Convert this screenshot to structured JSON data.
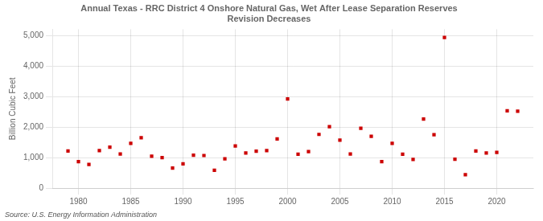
{
  "chart_data": {
    "type": "scatter",
    "title": "Annual Texas - RRC District 4 Onshore Natural Gas, Wet After Lease Separation Reserves\nRevision Decreases",
    "y_label": "Billion Cubic Feet",
    "source": "Source: U.S. Energy Information Administration",
    "x": [
      1979,
      1980,
      1981,
      1982,
      1983,
      1984,
      1985,
      1986,
      1987,
      1988,
      1989,
      1990,
      1991,
      1992,
      1993,
      1994,
      1995,
      1996,
      1997,
      1998,
      1999,
      2000,
      2001,
      2002,
      2003,
      2004,
      2005,
      2006,
      2007,
      2008,
      2009,
      2010,
      2011,
      2012,
      2013,
      2014,
      2015,
      2016,
      2017,
      2018,
      2019,
      2020,
      2021,
      2022
    ],
    "values": [
      1220,
      870,
      780,
      1230,
      1340,
      1120,
      1470,
      1650,
      1050,
      1000,
      660,
      800,
      1080,
      1070,
      590,
      960,
      1380,
      1150,
      1210,
      1230,
      1610,
      2920,
      1110,
      1200,
      1760,
      2010,
      1570,
      1120,
      1960,
      1700,
      870,
      1470,
      1110,
      940,
      2260,
      1750,
      4930,
      950,
      440,
      1220,
      1150,
      1170,
      2530,
      2520
    ],
    "color": "#cc0000",
    "marker": "square",
    "xlim": [
      1977.5,
      2023.5
    ],
    "xticks": [
      1980,
      1985,
      1990,
      1995,
      2000,
      2005,
      2010,
      2015,
      2020
    ],
    "ylim": [
      0,
      5200
    ],
    "yticks": [
      0,
      {
        "value": 1000,
        "label": "1,000"
      },
      {
        "value": 2000,
        "label": "2,000"
      },
      {
        "value": 3000,
        "label": "3,000"
      },
      {
        "value": 4000,
        "label": "4,000"
      },
      {
        "value": 5000,
        "label": "5,000"
      }
    ],
    "grid": true
  }
}
